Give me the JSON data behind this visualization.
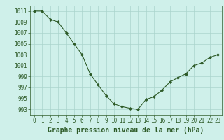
{
  "x": [
    0,
    1,
    2,
    3,
    4,
    5,
    6,
    7,
    8,
    9,
    10,
    11,
    12,
    13,
    14,
    15,
    16,
    17,
    18,
    19,
    20,
    21,
    22,
    23
  ],
  "y": [
    1011,
    1011,
    1009.5,
    1009,
    1007,
    1005,
    1003,
    999.5,
    997.5,
    995.5,
    994,
    993.5,
    993.2,
    993,
    994.8,
    995.3,
    996.5,
    998,
    998.8,
    999.5,
    1001,
    1001.5,
    1002.5,
    1003
  ],
  "line_color": "#2d5a27",
  "marker": "D",
  "marker_size": 2.0,
  "bg_color": "#cff0ea",
  "grid_color": "#aad4cc",
  "title": "Graphe pression niveau de la mer (hPa)",
  "ylim_min": 992,
  "ylim_max": 1012,
  "yticks": [
    993,
    995,
    997,
    999,
    1001,
    1003,
    1005,
    1007,
    1009,
    1011
  ],
  "xticks": [
    0,
    1,
    2,
    3,
    4,
    5,
    6,
    7,
    8,
    9,
    10,
    11,
    12,
    13,
    14,
    15,
    16,
    17,
    18,
    19,
    20,
    21,
    22,
    23
  ],
  "tick_fontsize": 5.5,
  "title_fontsize": 7.0,
  "line_width": 0.8
}
